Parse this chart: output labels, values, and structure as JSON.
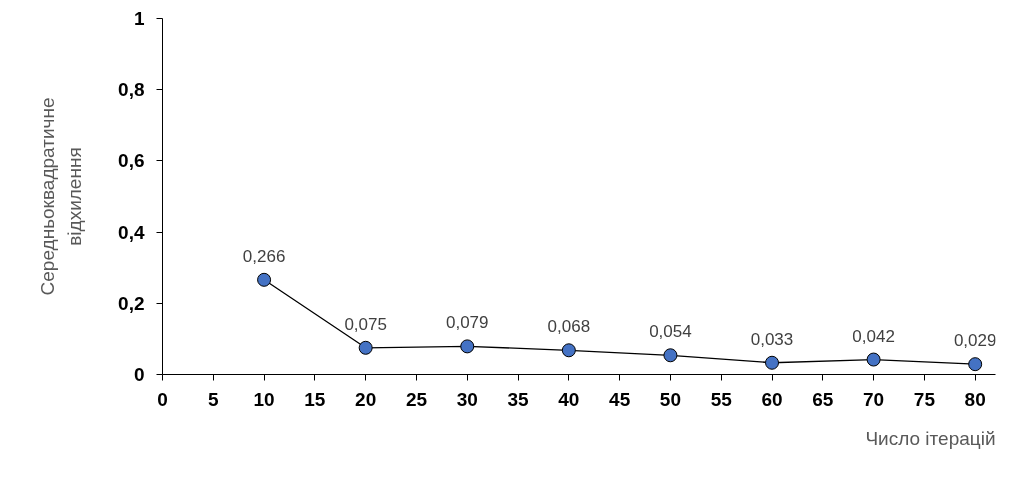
{
  "chart_data": {
    "type": "line",
    "xlabel": "Число ітерацій",
    "ylabel": "Середньоквадратичне відхилення",
    "x": [
      10,
      20,
      30,
      40,
      50,
      60,
      70,
      80
    ],
    "series": [
      {
        "color": "#4472c4",
        "values": [
          0.266,
          0.075,
          0.079,
          0.068,
          0.054,
          0.033,
          0.042,
          0.029
        ],
        "value_labels": [
          "0,266",
          "0,075",
          "0,079",
          "0,068",
          "0,054",
          "0,033",
          "0,042",
          "0,029"
        ]
      }
    ],
    "xlim": [
      0,
      82
    ],
    "xticks": [
      0,
      5,
      10,
      15,
      20,
      25,
      30,
      35,
      40,
      45,
      50,
      55,
      60,
      65,
      70,
      75,
      80
    ],
    "ylim": [
      0,
      1
    ],
    "yticks": [
      0,
      {
        "value": 0.2,
        "label": "0,2"
      },
      {
        "value": 0.4,
        "label": "0,4"
      },
      {
        "value": 0.6,
        "label": "0,6"
      },
      {
        "value": 0.8,
        "label": "0,8"
      },
      1
    ],
    "marker": "circle",
    "line_style": "solid",
    "grid": false
  }
}
